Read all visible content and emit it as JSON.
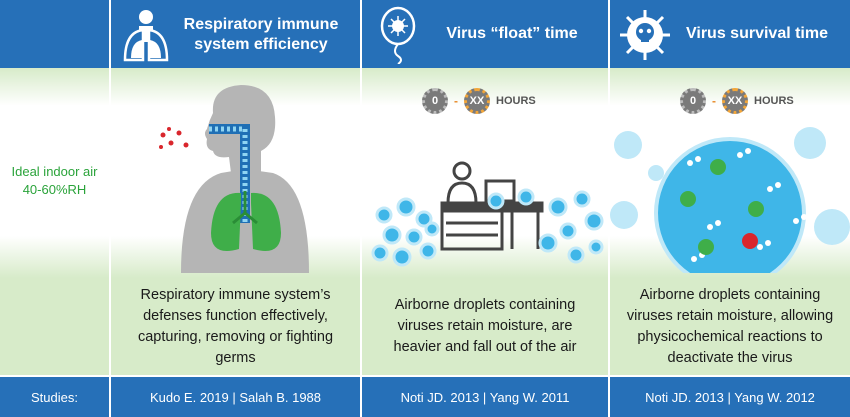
{
  "row_label": {
    "ideal_line1": "Ideal indoor air",
    "ideal_line2": "40-60%RH",
    "studies": "Studies:"
  },
  "columns": [
    {
      "title_line1": "Respiratory immune",
      "title_line2": "system efficiency",
      "icon": "lungs-icon",
      "description": "Respiratory immune system’s defenses function effectively, capturing, removing or fighting germs",
      "studies": "Kudo E. 2019 | Salah B. 1988"
    },
    {
      "title": "Virus “float” time",
      "icon": "balloon-virus-icon",
      "timer": {
        "from": "0",
        "to": "XX",
        "unit": "HOURS"
      },
      "description": "Airborne droplets containing viruses retain moisture, are heavier and fall out of the air",
      "studies": "Noti JD. 2013 | Yang W. 2011"
    },
    {
      "title": "Virus survival time",
      "icon": "skull-virus-icon",
      "timer": {
        "from": "0",
        "to": "XX",
        "unit": "HOURS"
      },
      "description": "Airborne droplets containing viruses retain moisture, allowing physicochemical reactions to deactivate the virus",
      "studies": "Noti JD. 2013 | Yang W. 2012"
    }
  ],
  "colors": {
    "header_blue": "#2670b8",
    "light_green": "#d7ebc9",
    "lung_green": "#3fae49",
    "droplet_blue": "#3fb6e8",
    "virus_red": "#d9262c"
  }
}
